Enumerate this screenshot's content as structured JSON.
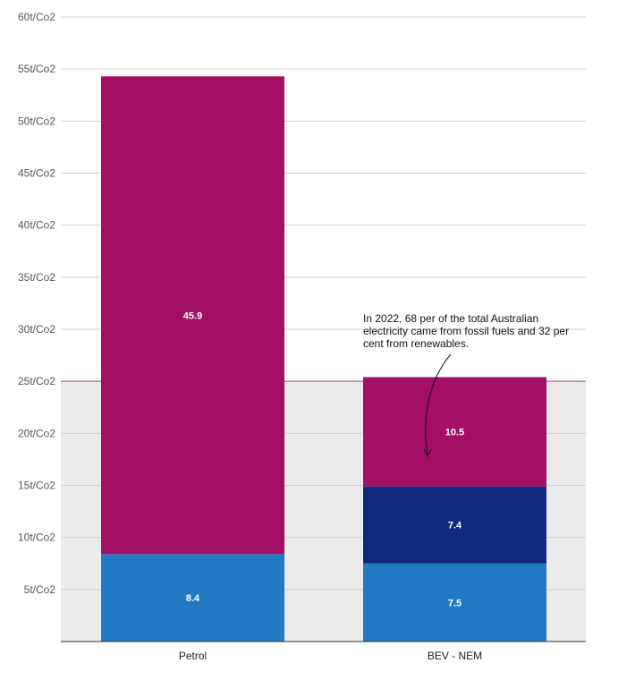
{
  "chart_data": {
    "type": "bar",
    "stacked": true,
    "categories": [
      "Petrol",
      "BEV - NEM"
    ],
    "series": [
      {
        "values": [
          8.4,
          7.5
        ],
        "color": "#2479c4"
      },
      {
        "values": [
          0,
          7.4
        ],
        "color": "#0f2a7f"
      },
      {
        "values": [
          45.9,
          10.5
        ],
        "color": "#a30f62"
      }
    ],
    "data_labels": [
      [
        "8.4",
        "7.5"
      ],
      [
        "",
        "7.4"
      ],
      [
        "45.9",
        "10.5"
      ]
    ],
    "y_ticks": [
      5,
      10,
      15,
      20,
      25,
      30,
      35,
      40,
      45,
      50,
      55,
      60
    ],
    "y_tick_labels": [
      "5t/Co2",
      "10t/Co2",
      "15t/Co2",
      "20t/Co2",
      "25t/Co2",
      "30t/Co2",
      "35t/Co2",
      "40t/Co2",
      "45t/Co2",
      "50t/Co2",
      "55t/Co2",
      "60t/Co2"
    ],
    "ylim": [
      0,
      60
    ],
    "grid": true,
    "highlight_band": {
      "from": 0,
      "to": 25,
      "color": "#ebebeb"
    },
    "reference_line": {
      "y": 25,
      "color": "#a05080"
    },
    "annotation": {
      "lines": [
        "In 2022, 68 per of the total Australian",
        "electricity came from fossil fuels and 32 per",
        "cent from renewables."
      ],
      "target_category": "BEV - NEM"
    }
  }
}
